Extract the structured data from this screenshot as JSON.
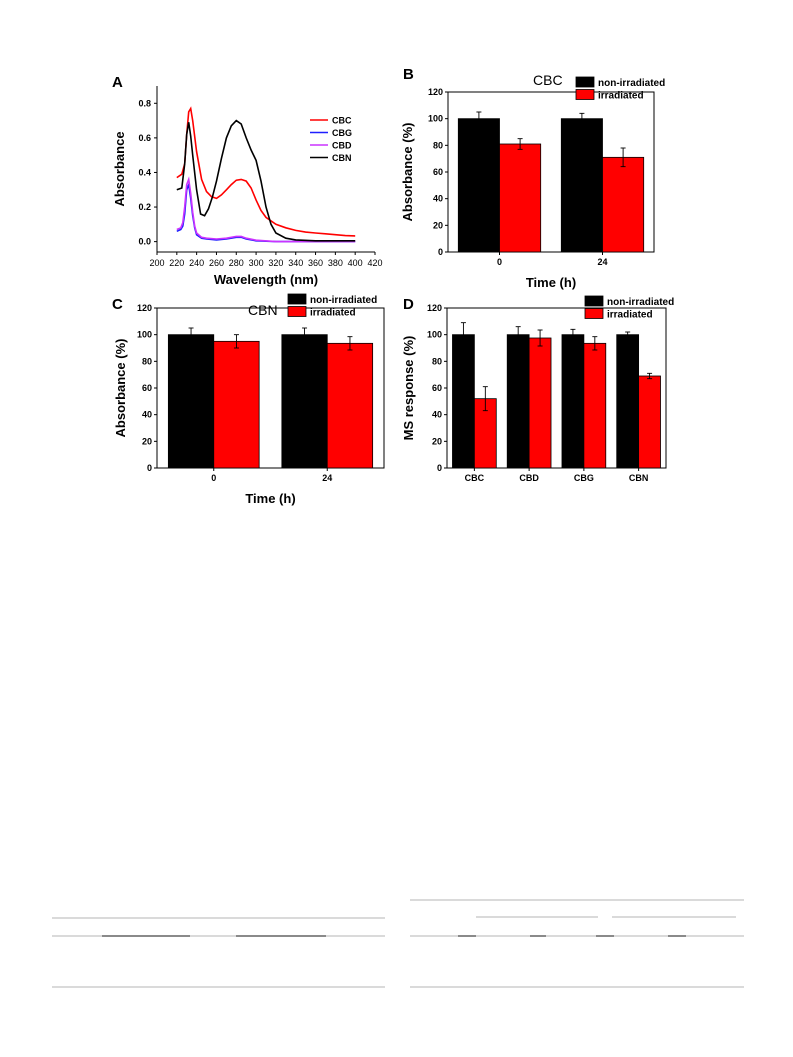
{
  "panels": {
    "A": {
      "letter": "A"
    },
    "B": {
      "letter": "B"
    },
    "C": {
      "letter": "C"
    },
    "D": {
      "letter": "D"
    }
  },
  "colors": {
    "black": "#000000",
    "red": "#ff0000",
    "blue": "#1f1fff",
    "magenta": "#cc33ff"
  },
  "chart_data": [
    {
      "panel": "A",
      "type": "line",
      "title": "",
      "xlabel": "Wavelength (nm)",
      "ylabel": "Absorbance",
      "xlim": [
        200,
        420
      ],
      "ylim": [
        -0.06,
        0.9
      ],
      "xticks": [
        200,
        220,
        240,
        260,
        280,
        300,
        320,
        340,
        360,
        380,
        400,
        420
      ],
      "yticks": [
        0.0,
        0.2,
        0.4,
        0.6,
        0.8
      ],
      "legend": "top-right",
      "series": [
        {
          "name": "CBC",
          "color": "#ff0000",
          "x": [
            220,
            225,
            228,
            230,
            232,
            234,
            236,
            240,
            245,
            250,
            255,
            260,
            265,
            270,
            275,
            280,
            285,
            290,
            295,
            300,
            305,
            310,
            320,
            330,
            340,
            350,
            360,
            370,
            380,
            390,
            400
          ],
          "y": [
            0.37,
            0.39,
            0.45,
            0.62,
            0.75,
            0.77,
            0.7,
            0.52,
            0.36,
            0.29,
            0.26,
            0.25,
            0.27,
            0.3,
            0.33,
            0.355,
            0.36,
            0.35,
            0.31,
            0.24,
            0.18,
            0.14,
            0.1,
            0.08,
            0.065,
            0.055,
            0.05,
            0.045,
            0.04,
            0.035,
            0.033
          ]
        },
        {
          "name": "CBG",
          "color": "#1f1fff",
          "x": [
            220,
            224,
            226,
            228,
            230,
            232,
            234,
            236,
            238,
            240,
            245,
            250,
            260,
            270,
            280,
            285,
            290,
            300,
            320,
            340,
            360,
            380,
            400
          ],
          "y": [
            0.06,
            0.07,
            0.09,
            0.16,
            0.3,
            0.33,
            0.25,
            0.15,
            0.08,
            0.04,
            0.02,
            0.015,
            0.01,
            0.015,
            0.025,
            0.025,
            0.015,
            0.005,
            0.0,
            0.0,
            0.0,
            0.0,
            0.0
          ]
        },
        {
          "name": "CBD",
          "color": "#cc33ff",
          "x": [
            220,
            224,
            226,
            228,
            230,
            232,
            234,
            236,
            238,
            240,
            245,
            250,
            260,
            270,
            280,
            285,
            290,
            300,
            320,
            340,
            360,
            380,
            400
          ],
          "y": [
            0.07,
            0.08,
            0.11,
            0.2,
            0.33,
            0.36,
            0.28,
            0.17,
            0.09,
            0.05,
            0.025,
            0.02,
            0.015,
            0.02,
            0.03,
            0.03,
            0.02,
            0.008,
            0.0,
            0.0,
            0.0,
            0.0,
            0.0
          ]
        },
        {
          "name": "CBN",
          "color": "#000000",
          "x": [
            220,
            225,
            228,
            230,
            232,
            234,
            236,
            240,
            244,
            248,
            252,
            256,
            260,
            265,
            270,
            275,
            280,
            285,
            290,
            295,
            300,
            305,
            310,
            315,
            320,
            330,
            340,
            360,
            380,
            400
          ],
          "y": [
            0.3,
            0.31,
            0.45,
            0.62,
            0.69,
            0.61,
            0.5,
            0.3,
            0.16,
            0.15,
            0.19,
            0.26,
            0.35,
            0.48,
            0.6,
            0.67,
            0.7,
            0.68,
            0.6,
            0.53,
            0.47,
            0.35,
            0.2,
            0.1,
            0.05,
            0.02,
            0.01,
            0.005,
            0.005,
            0.005
          ]
        }
      ]
    },
    {
      "panel": "B",
      "type": "bar",
      "title": "CBC",
      "xlabel": "Time (h)",
      "ylabel": "Absorbance (%)",
      "categories": [
        "0",
        "24"
      ],
      "ylim": [
        0,
        120
      ],
      "yticks": [
        0,
        20,
        40,
        60,
        80,
        100,
        120
      ],
      "legend": "top-right",
      "series": [
        {
          "name": "non-irradiated",
          "color": "#000000",
          "values": [
            100,
            100
          ],
          "errors": [
            5,
            4
          ]
        },
        {
          "name": "irradiated",
          "color": "#ff0000",
          "values": [
            81,
            71
          ],
          "errors": [
            4,
            7
          ]
        }
      ]
    },
    {
      "panel": "C",
      "type": "bar",
      "title": "CBN",
      "xlabel": "Time (h)",
      "ylabel": "Absorbance (%)",
      "categories": [
        "0",
        "24"
      ],
      "ylim": [
        0,
        120
      ],
      "yticks": [
        0,
        20,
        40,
        60,
        80,
        100,
        120
      ],
      "legend": "top-right",
      "series": [
        {
          "name": "non-irradiated",
          "color": "#000000",
          "values": [
            100,
            100
          ],
          "errors": [
            5,
            5
          ]
        },
        {
          "name": "irradiated",
          "color": "#ff0000",
          "values": [
            95,
            93.5
          ],
          "errors": [
            5,
            5
          ]
        }
      ]
    },
    {
      "panel": "D",
      "type": "bar",
      "title": "",
      "xlabel": "",
      "ylabel": "MS response (%)",
      "categories": [
        "CBC",
        "CBD",
        "CBG",
        "CBN"
      ],
      "ylim": [
        0,
        120
      ],
      "yticks": [
        0,
        20,
        40,
        60,
        80,
        100,
        120
      ],
      "legend": "top-right",
      "series": [
        {
          "name": "non-irradiated",
          "color": "#000000",
          "values": [
            100,
            100,
            100,
            100
          ],
          "errors": [
            9,
            6,
            4,
            2
          ]
        },
        {
          "name": "irradiated",
          "color": "#ff0000",
          "values": [
            52,
            97.5,
            93.5,
            69
          ],
          "errors": [
            9,
            6,
            5,
            2
          ]
        }
      ]
    }
  ]
}
